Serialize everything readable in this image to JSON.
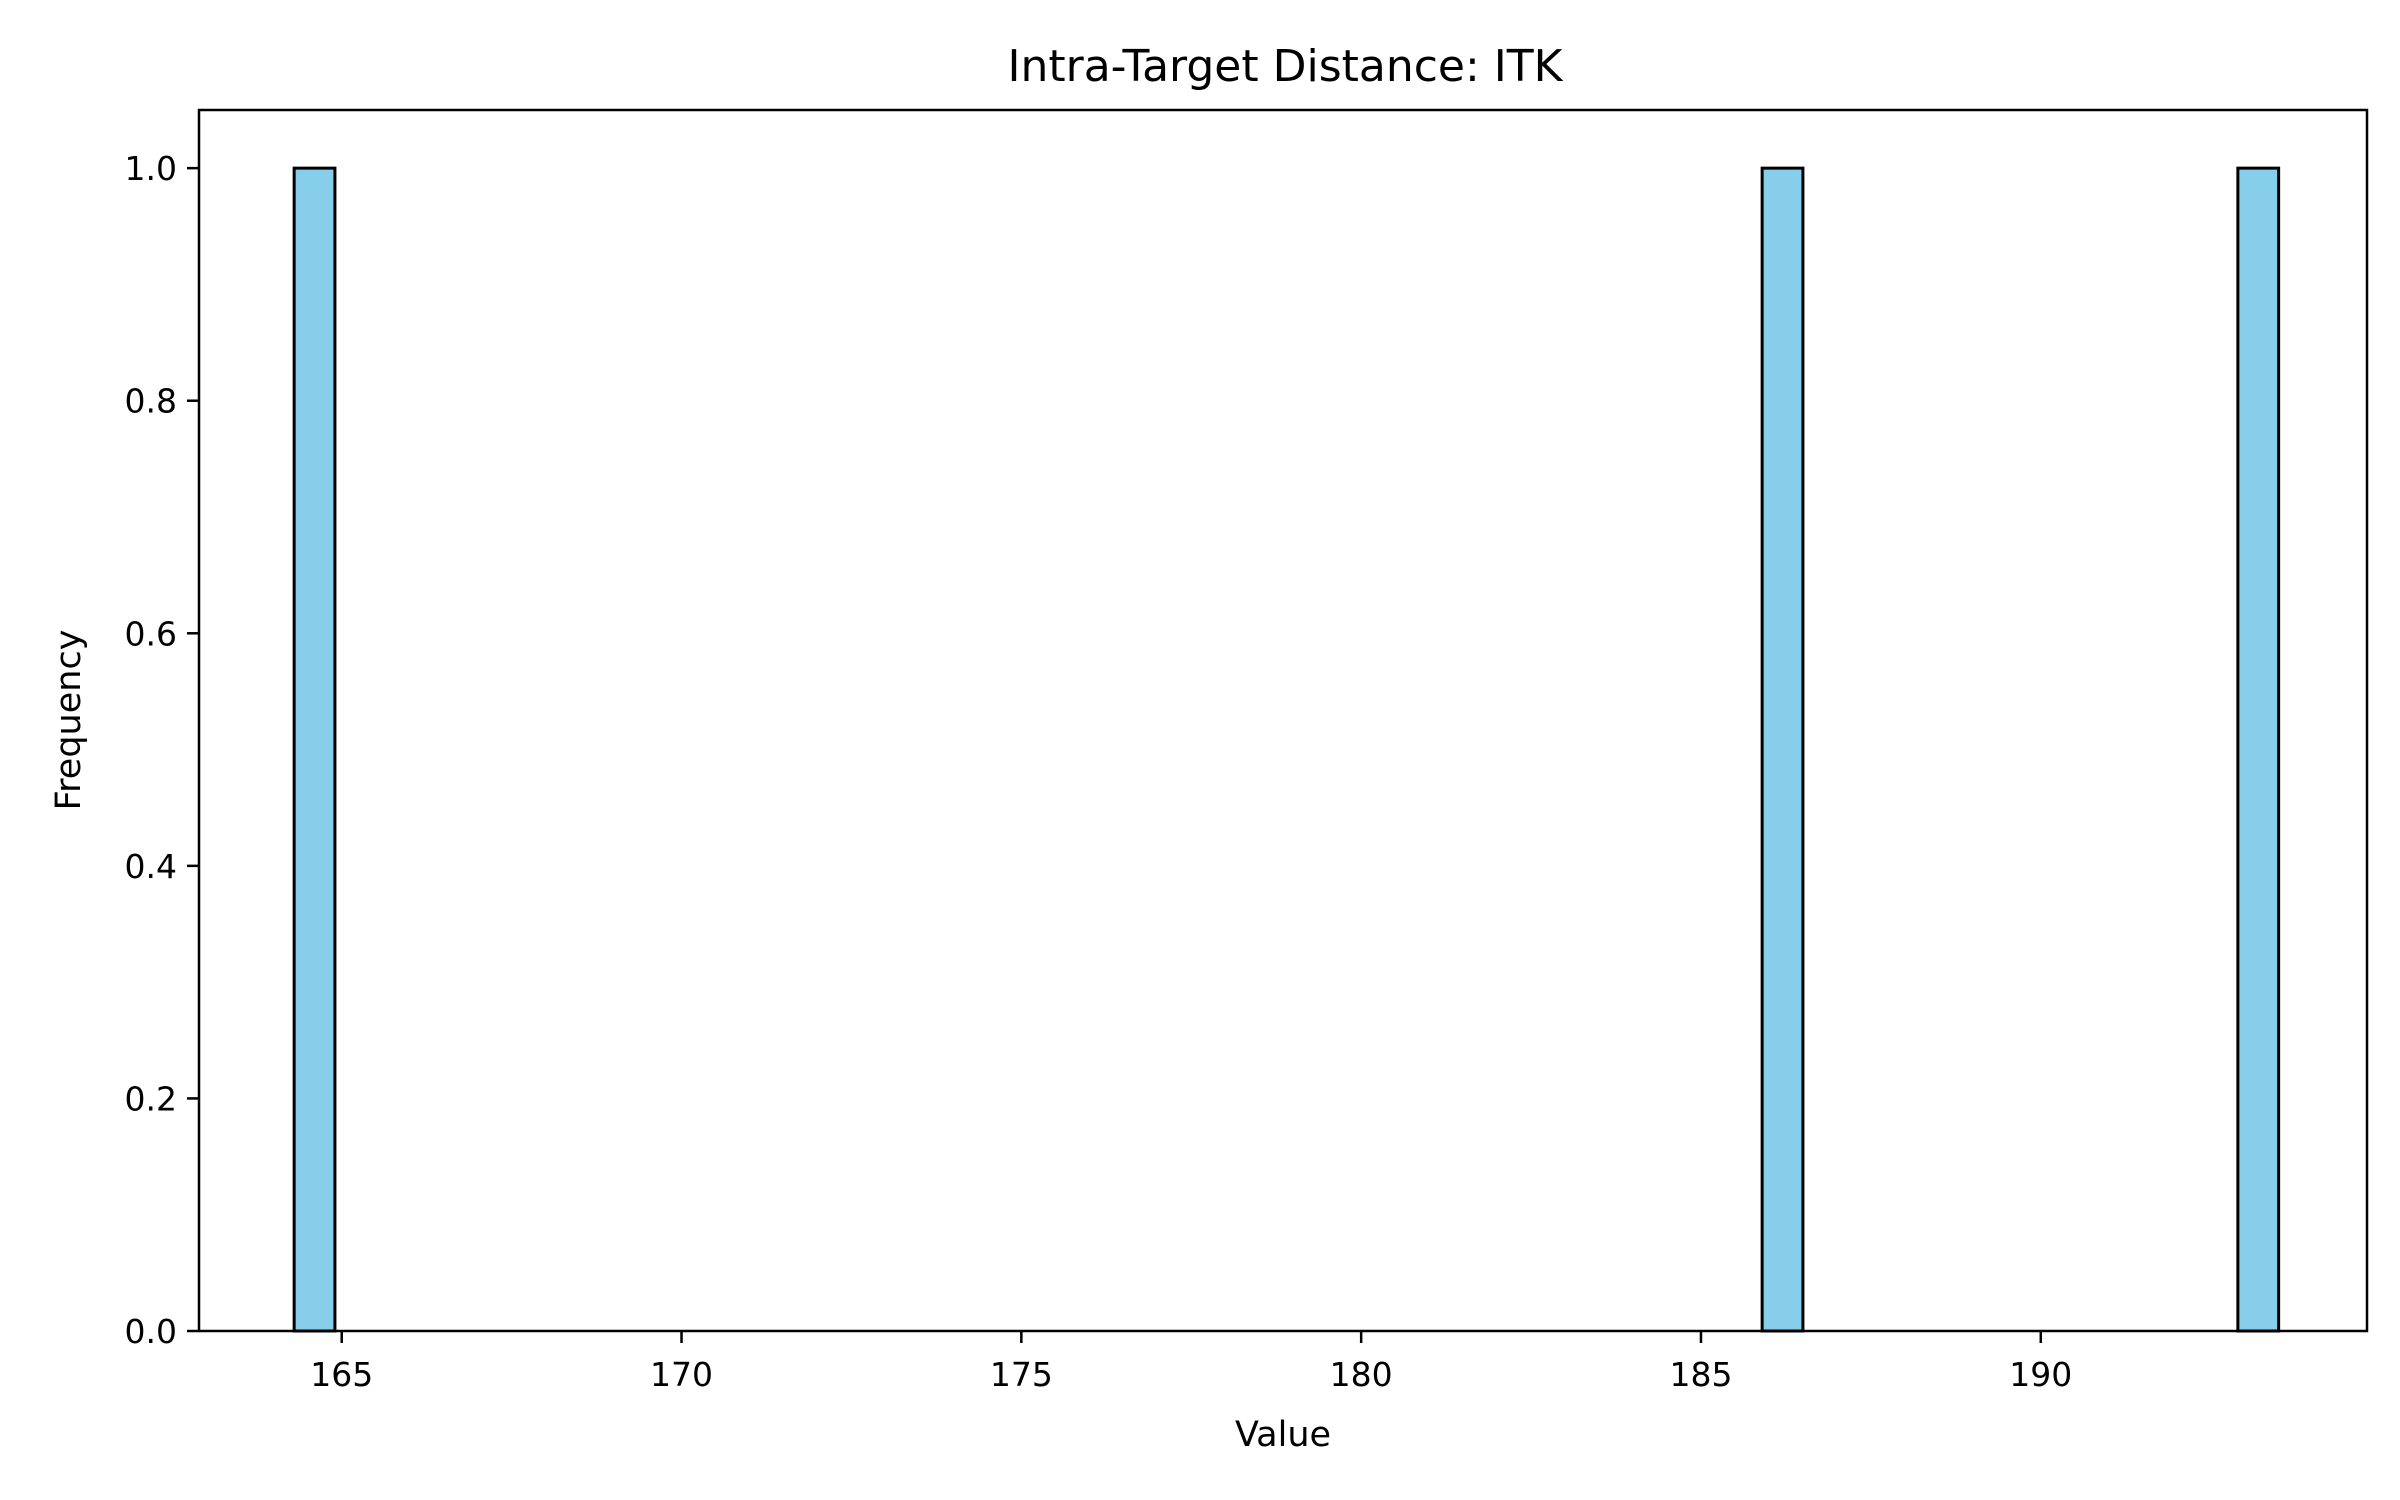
{
  "chart_data": {
    "type": "bar",
    "title": "Intra-Target Distance: ITK",
    "xlabel": "Value",
    "ylabel": "Frequency",
    "xlim": [
      162.9,
      194.8
    ],
    "ylim": [
      0.0,
      1.05
    ],
    "xticks": [
      165,
      170,
      175,
      180,
      185,
      190
    ],
    "yticks": [
      0.0,
      0.2,
      0.4,
      0.6,
      0.8,
      1.0
    ],
    "xtick_labels": [
      "165",
      "170",
      "175",
      "180",
      "185",
      "190"
    ],
    "ytick_labels": [
      "0.0",
      "0.2",
      "0.4",
      "0.6",
      "0.8",
      "1.0"
    ],
    "bins": [
      {
        "start": 164.3,
        "end": 164.9,
        "count": 1
      },
      {
        "start": 185.9,
        "end": 186.5,
        "count": 1
      },
      {
        "start": 192.9,
        "end": 193.5,
        "count": 1
      }
    ],
    "bar_color": "#87CEEB",
    "edge_color": "#000000",
    "grid": false,
    "legend": false
  }
}
